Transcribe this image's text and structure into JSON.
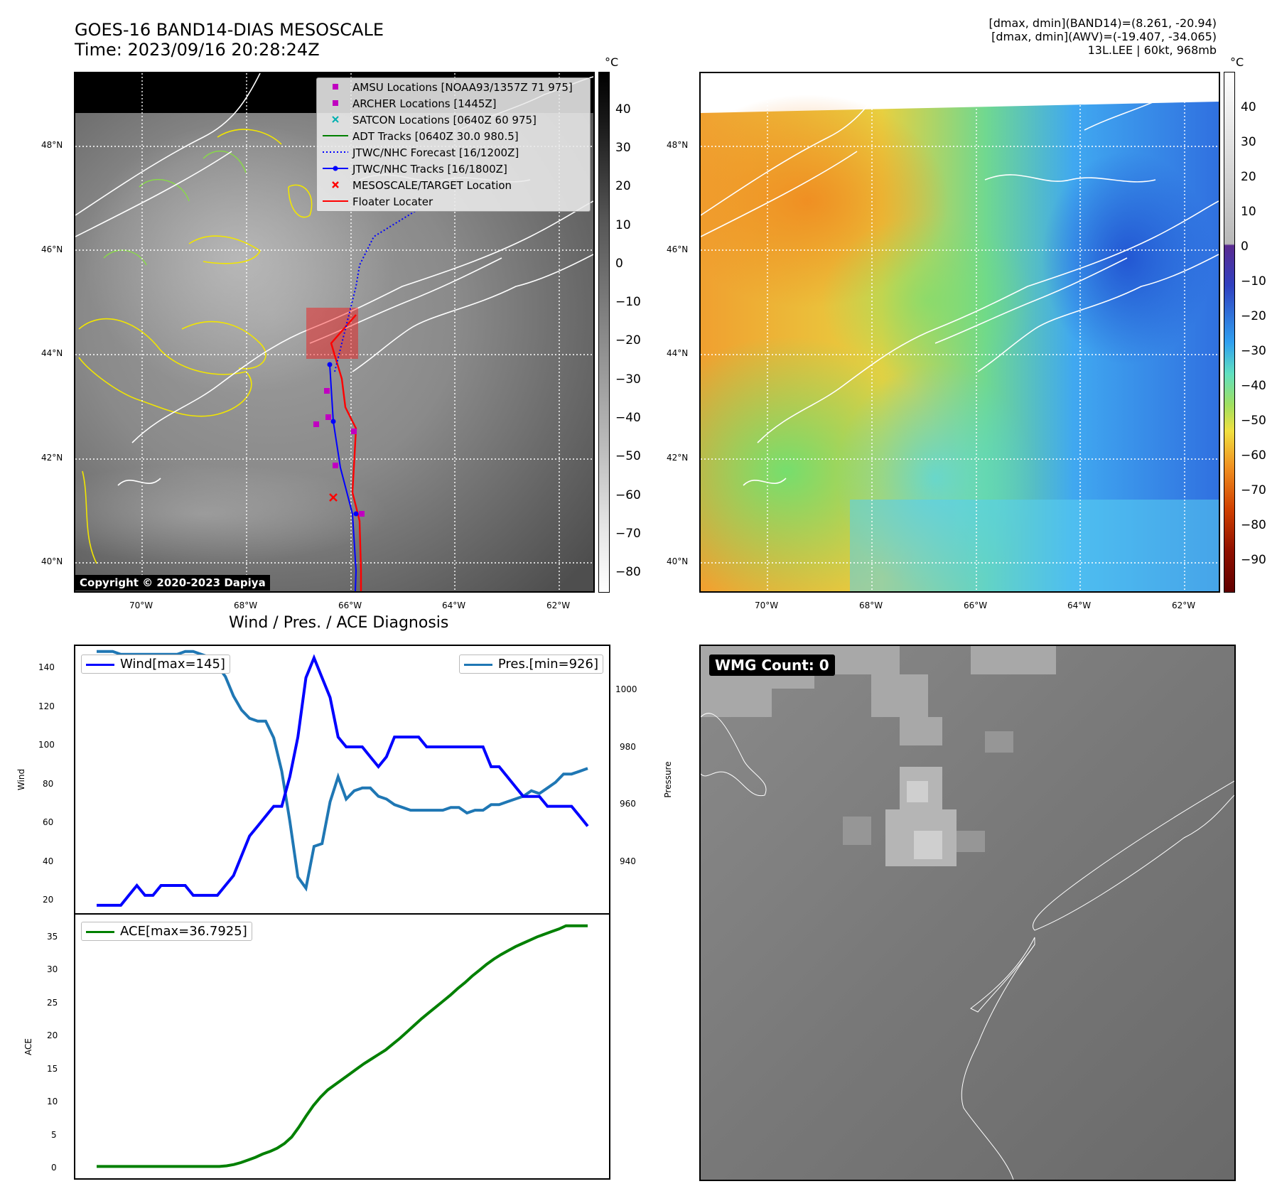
{
  "header": {
    "title_line1": "GOES-16 BAND14-DIAS MESOSCALE",
    "title_line2": "Time: 2023/09/16 20:28:24Z",
    "info_line1": "[dmax, dmin](BAND14)=(8.261, -20.94)",
    "info_line2": "[dmax, dmin](AWV)=(-19.407, -34.065)",
    "info_line3": "13L.LEE | 60kt, 968mb"
  },
  "map_axes": {
    "lat_ticks": [
      "48°N",
      "46°N",
      "44°N",
      "42°N",
      "40°N"
    ],
    "lon_ticks": [
      "70°W",
      "68°W",
      "66°W",
      "64°W",
      "62°W"
    ],
    "lat_range": [
      39.4,
      49.4
    ],
    "lon_range": [
      -71.3,
      -61.3
    ]
  },
  "ir_colorbar": {
    "unit": "°C",
    "ticks": [
      "40",
      "30",
      "20",
      "10",
      "0",
      "−10",
      "−20",
      "−30",
      "−40",
      "−50",
      "−60",
      "−70",
      "−80"
    ],
    "range": [
      -85,
      50
    ]
  },
  "wv_colorbar": {
    "unit": "°C",
    "ticks": [
      "40",
      "30",
      "20",
      "10",
      "0",
      "−10",
      "−20",
      "−30",
      "−40",
      "−50",
      "−60",
      "−70",
      "−80",
      "−90"
    ],
    "range": [
      -100,
      50
    ]
  },
  "legend": {
    "items": [
      {
        "label": "AMSU Locations [NOAA93/1357Z 71 975]",
        "marker": "square",
        "color": "#c000c0"
      },
      {
        "label": "ARCHER Locations [1445Z]",
        "marker": "square",
        "color": "#c000c0"
      },
      {
        "label": "SATCON Locations [0640Z 60 975]",
        "marker": "x",
        "color": "#00b0b0"
      },
      {
        "label": "ADT Tracks [0640Z 30.0 980.5]",
        "marker": "line",
        "color": "#008000"
      },
      {
        "label": "JTWC/NHC Forecast [16/1200Z]",
        "marker": "dotted",
        "color": "#0000ff"
      },
      {
        "label": "JTWC/NHC Tracks [16/1800Z]",
        "marker": "line-dot",
        "color": "#0000ff"
      },
      {
        "label": "MESOSCALE/TARGET Location",
        "marker": "x",
        "color": "#ff0000"
      },
      {
        "label": "Floater Locater",
        "marker": "line",
        "color": "#ff0000"
      }
    ]
  },
  "copyright": "Copyright © 2020-2023 Dapiya",
  "wmg": "WMG Count: 0",
  "diag_title": "Wind / Pres. / ACE Diagnosis",
  "chart_data": [
    {
      "type": "line",
      "title": "Wind / Pres. / ACE Diagnosis",
      "ylabel": "Wind",
      "y2label": "Pressure",
      "ylim": [
        16,
        151
      ],
      "y2lim": [
        917,
        1013
      ],
      "yticks": [
        "140",
        "120",
        "100",
        "80",
        "60",
        "40",
        "20"
      ],
      "y2ticks": [
        "1000",
        "980",
        "960",
        "940"
      ],
      "series": [
        {
          "name": "Wind[max=145]",
          "color": "#0000ff",
          "axis": "left",
          "values": [
            20,
            20,
            20,
            20,
            25,
            30,
            25,
            25,
            30,
            30,
            30,
            30,
            25,
            25,
            25,
            25,
            30,
            35,
            45,
            55,
            60,
            65,
            70,
            70,
            85,
            105,
            135,
            145,
            135,
            125,
            105,
            100,
            100,
            100,
            95,
            90,
            95,
            105,
            105,
            105,
            105,
            100,
            100,
            100,
            100,
            100,
            100,
            100,
            100,
            90,
            90,
            85,
            80,
            75,
            75,
            75,
            70,
            70,
            70,
            70,
            65,
            60
          ]
        },
        {
          "name": "Pres.[min=926]",
          "color": "#1f77b4",
          "axis": "right",
          "values": [
            1011,
            1011,
            1011,
            1010,
            1010,
            1010,
            1010,
            1010,
            1010,
            1010,
            1010,
            1011,
            1011,
            1010,
            1009,
            1006,
            1002,
            995,
            990,
            987,
            986,
            986,
            980,
            968,
            950,
            930,
            926,
            941,
            942,
            957,
            966,
            958,
            961,
            962,
            962,
            959,
            958,
            956,
            955,
            954,
            954,
            954,
            954,
            954,
            955,
            955,
            953,
            954,
            954,
            956,
            956,
            957,
            958,
            959,
            961,
            960,
            962,
            964,
            967,
            967,
            968,
            969
          ]
        }
      ]
    },
    {
      "type": "line",
      "ylabel": "ACE",
      "ylim": [
        -1.8,
        38.5
      ],
      "yticks": [
        "35",
        "30",
        "25",
        "20",
        "15",
        "10",
        "5",
        "0"
      ],
      "series": [
        {
          "name": "ACE[max=36.7925]",
          "color": "#008000",
          "values": [
            0,
            0,
            0,
            0,
            0,
            0,
            0,
            0,
            0,
            0,
            0,
            0,
            0,
            0,
            0,
            0,
            0,
            0,
            0.1,
            0.3,
            0.6,
            1.0,
            1.4,
            1.9,
            2.3,
            2.8,
            3.5,
            4.5,
            6.0,
            7.7,
            9.3,
            10.6,
            11.7,
            12.5,
            13.3,
            14.1,
            14.9,
            15.7,
            16.4,
            17.1,
            17.8,
            18.7,
            19.6,
            20.6,
            21.6,
            22.6,
            23.5,
            24.4,
            25.3,
            26.2,
            27.2,
            28.1,
            29.1,
            30.0,
            30.9,
            31.7,
            32.4,
            33.0,
            33.6,
            34.1,
            34.6,
            35.1,
            35.5,
            35.9,
            36.3,
            36.8,
            36.8,
            36.8,
            36.8
          ]
        }
      ]
    }
  ]
}
